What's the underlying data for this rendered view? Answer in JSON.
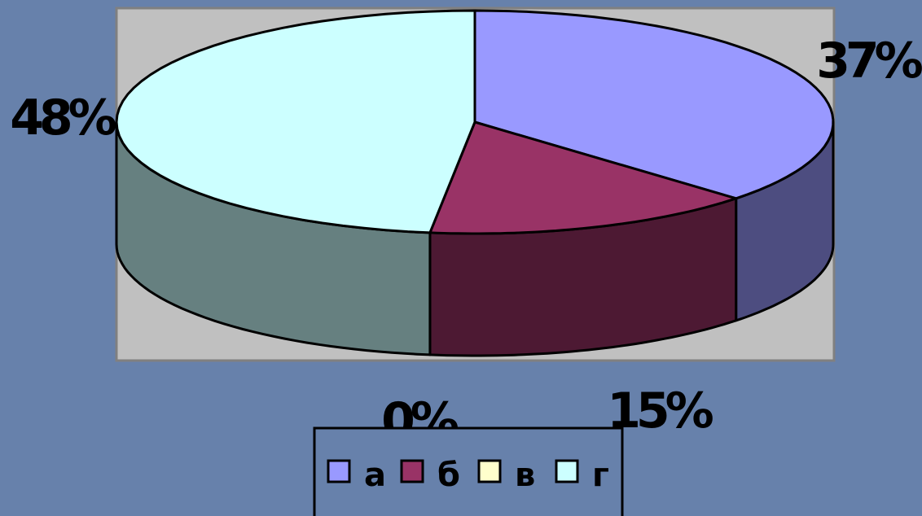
{
  "chart_data": {
    "type": "pie",
    "style": "3d",
    "categories": [
      "а",
      "б",
      "в",
      "г"
    ],
    "values": [
      37,
      15,
      0,
      48
    ],
    "value_labels": [
      "37%",
      "15%",
      "0%",
      "48%"
    ],
    "colors": {
      "top": [
        "#9999FF",
        "#993366",
        "#FFFFCC",
        "#CCFFFF"
      ],
      "side": [
        "#4D4D80",
        "#4D1933",
        "#808066",
        "#668080"
      ]
    },
    "legend_position": "bottom",
    "plot_area_color": "#C0C0C0",
    "background_color": "#6781AB"
  }
}
